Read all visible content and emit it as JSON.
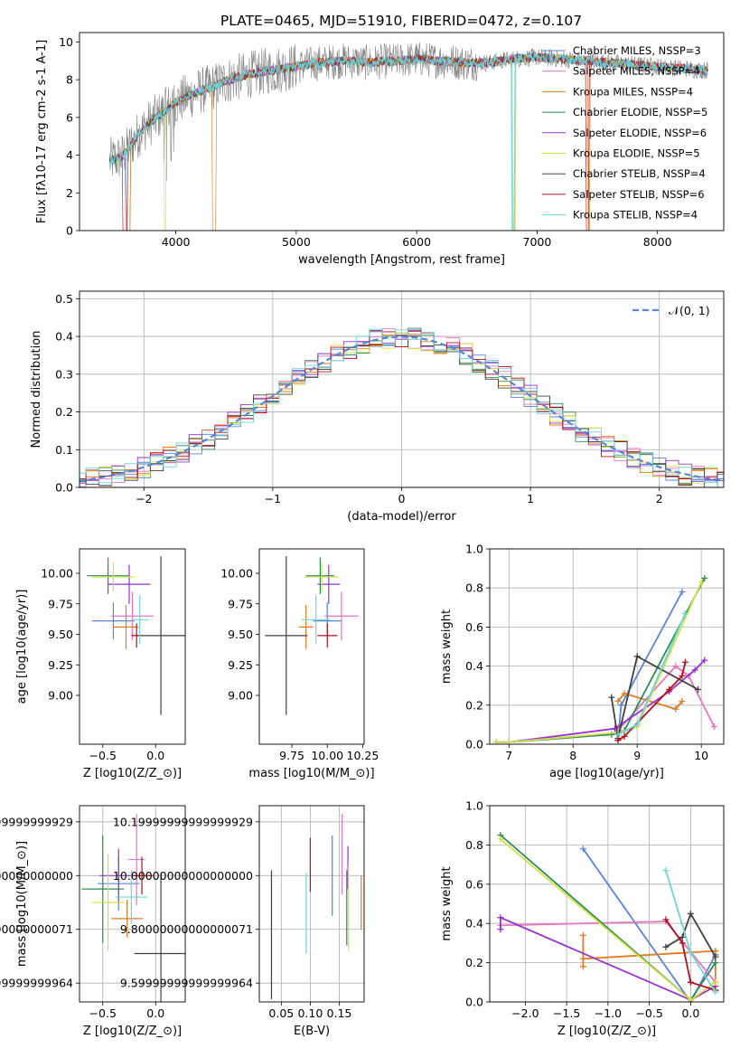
{
  "suptitle": "PLATE=0465, MJD=51910, FIBERID=0472, z=0.107",
  "series_names": [
    "Chabrier MILES, N$_{SSP}$=3",
    "Salpeter MILES, N$_{SSP}$=4",
    "Kroupa MILES, N$_{SSP}$=4",
    "Chabrier ELODIE, N$_{SSP}$=5",
    "Salpeter ELODIE, N$_{SSP}$=6",
    "Kroupa ELODIE, N$_{SSP}$=5",
    "Chabrier STELIB, N$_{SSP}$=4",
    "Salpeter STELIB, N$_{SSP}$=6",
    "Kroupa STELIB, N$_{SSP}$=4"
  ],
  "colors": [
    "#5b84d6",
    "#e377c2",
    "#e07b20",
    "#2e8b57",
    "#9932cc",
    "#d4e04a",
    "#404040",
    "#b01020",
    "#6fd4d8"
  ],
  "chart_data": [
    {
      "id": "spectrum",
      "type": "line",
      "title": "PLATE=0465, MJD=51910, FIBERID=0472, z=0.107",
      "xlabel": "wavelength [Angstrom, rest frame]",
      "ylabel": "Flux [f$_\\lambda$10$^{-17}$ erg cm$^{-2}$ s$^{-1}$ A$^{-1}$]",
      "xlim": [
        3200,
        8550
      ],
      "ylim": [
        0,
        10.5
      ],
      "xticks": [
        4000,
        5000,
        6000,
        7000,
        8000
      ],
      "yticks": [
        0,
        2,
        4,
        6,
        8,
        10
      ],
      "data_series": {
        "name": "data",
        "color": "#808080"
      },
      "continuum_knots": {
        "x": [
          3450,
          3550,
          3600,
          3700,
          3800,
          3900,
          4000,
          4100,
          4200,
          4300,
          4400,
          4500,
          4700,
          4900,
          5000,
          5200,
          5400,
          5600,
          5800,
          6000,
          6200,
          6400,
          6600,
          6800,
          7000,
          7200,
          7400,
          7600,
          7800,
          8000,
          8200,
          8400
        ],
        "y": [
          3.7,
          3.9,
          4.3,
          5.2,
          5.8,
          6.3,
          6.8,
          7.1,
          7.4,
          7.6,
          7.9,
          8.1,
          8.4,
          8.6,
          8.7,
          8.9,
          9.0,
          8.9,
          9.0,
          9.1,
          9.0,
          8.9,
          8.9,
          9.1,
          9.2,
          9.1,
          9.0,
          8.9,
          8.8,
          8.7,
          8.6,
          8.5
        ]
      },
      "legend": "upper right"
    },
    {
      "id": "residual_hist",
      "type": "histogram",
      "xlabel": "(data-model)/error",
      "ylabel": "Normed distribution",
      "xlim": [
        -2.5,
        2.5
      ],
      "ylim": [
        0,
        0.52
      ],
      "xticks": [
        -2,
        -1,
        0,
        1,
        2
      ],
      "yticks": [
        0.0,
        0.1,
        0.2,
        0.3,
        0.4,
        0.5
      ],
      "grid": true,
      "bin_width": 0.1,
      "reference_curve": {
        "name": "$\\mathcal{N}(0,1)$",
        "color": "#5b84d6",
        "style": "dashed"
      },
      "legend": "upper right"
    },
    {
      "id": "age_vs_Z",
      "type": "errorbar",
      "xlabel": "Z [log$_{10}$(Z/Z$_\\odot$)]",
      "ylabel": "age  [log$_{10}$(age/yr)]",
      "xlim": [
        -0.72,
        0.28
      ],
      "ylim": [
        8.6,
        10.2
      ],
      "xticks": [
        -0.5,
        0.0
      ],
      "yticks": [
        9.0,
        9.25,
        9.5,
        9.75,
        10.0
      ],
      "points": [
        {
          "x": -0.4,
          "xerr": 0.2,
          "y": 9.61,
          "yerr": 0.15
        },
        {
          "x": -0.22,
          "xerr": 0.2,
          "y": 9.65,
          "yerr": 0.2
        },
        {
          "x": -0.28,
          "xerr": 0.12,
          "y": 9.56,
          "yerr": 0.18
        },
        {
          "x": -0.45,
          "xerr": 0.2,
          "y": 9.98,
          "yerr": 0.15
        },
        {
          "x": -0.25,
          "xerr": 0.2,
          "y": 9.91,
          "yerr": 0.16
        },
        {
          "x": -0.4,
          "xerr": 0.2,
          "y": 9.97,
          "yerr": 0.12
        },
        {
          "x": 0.05,
          "xerr": 0.25,
          "y": 9.49,
          "yerr": 0.65
        },
        {
          "x": -0.18,
          "xerr": 0.05,
          "y": 9.49,
          "yerr": 0.1
        },
        {
          "x": -0.15,
          "xerr": 0.08,
          "y": 9.62,
          "yerr": 0.2
        }
      ]
    },
    {
      "id": "age_vs_mass",
      "type": "errorbar",
      "xlabel": "mass [log$_{10}$(M/M$_\\odot$)]",
      "xlim": [
        9.52,
        10.26
      ],
      "ylim": [
        8.6,
        10.2
      ],
      "xticks": [
        9.75,
        10.0,
        10.25
      ],
      "yticks": [
        9.0,
        9.25,
        9.5,
        9.75,
        10.0
      ],
      "points": [
        {
          "x": 10.0,
          "xerr": 0.1,
          "y": 9.61,
          "yerr": 0.15
        },
        {
          "x": 10.1,
          "xerr": 0.12,
          "y": 9.65,
          "yerr": 0.2
        },
        {
          "x": 9.85,
          "xerr": 0.05,
          "y": 9.56,
          "yerr": 0.18
        },
        {
          "x": 9.95,
          "xerr": 0.1,
          "y": 9.98,
          "yerr": 0.15
        },
        {
          "x": 10.01,
          "xerr": 0.08,
          "y": 9.91,
          "yerr": 0.16
        },
        {
          "x": 9.96,
          "xerr": 0.12,
          "y": 9.97,
          "yerr": 0.12
        },
        {
          "x": 9.71,
          "xerr": 0.15,
          "y": 9.49,
          "yerr": 0.65
        },
        {
          "x": 10.0,
          "xerr": 0.07,
          "y": 9.49,
          "yerr": 0.1
        },
        {
          "x": 9.92,
          "xerr": 0.1,
          "y": 9.62,
          "yerr": 0.2
        }
      ]
    },
    {
      "id": "weight_vs_age",
      "type": "line",
      "xlabel": "age  [log$_{10}$(age/yr)]",
      "ylabel": "mass weight",
      "xlim": [
        6.7,
        10.35
      ],
      "ylim": [
        0,
        1.0
      ],
      "xticks": [
        7,
        8,
        9,
        10
      ],
      "yticks": [
        0.0,
        0.2,
        0.4,
        0.6,
        0.8,
        1.0
      ],
      "grid": true,
      "series": [
        {
          "x": [
            8.7,
            8.75,
            9.7
          ],
          "y": [
            0.02,
            0.2,
            0.78
          ]
        },
        {
          "x": [
            8.7,
            9.6,
            9.8,
            10.2
          ],
          "y": [
            0.07,
            0.4,
            0.35,
            0.09
          ]
        },
        {
          "x": [
            8.7,
            8.8,
            9.6,
            9.7
          ],
          "y": [
            0.22,
            0.26,
            0.18,
            0.22
          ]
        },
        {
          "x": [
            6.8,
            7.0,
            8.6,
            8.8,
            10.05
          ],
          "y": [
            0.01,
            0.01,
            0.05,
            0.07,
            0.85
          ]
        },
        {
          "x": [
            6.8,
            7.0,
            8.65,
            9.5,
            9.9,
            10.05
          ],
          "y": [
            0.01,
            0.01,
            0.08,
            0.27,
            0.38,
            0.43
          ]
        },
        {
          "x": [
            6.8,
            7.0,
            8.7,
            9.0,
            10.0
          ],
          "y": [
            0.01,
            0.01,
            0.06,
            0.09,
            0.83
          ]
        },
        {
          "x": [
            8.6,
            8.7,
            9.0,
            9.95
          ],
          "y": [
            0.24,
            0.03,
            0.45,
            0.28
          ]
        },
        {
          "x": [
            8.7,
            8.8,
            9.5,
            9.7,
            9.75
          ],
          "y": [
            0.02,
            0.04,
            0.28,
            0.35,
            0.42
          ]
        },
        {
          "x": [
            8.7,
            9.0,
            9.75
          ],
          "y": [
            0.05,
            0.1,
            0.67
          ]
        }
      ]
    },
    {
      "id": "mass_vs_Z",
      "type": "errorbar",
      "xlabel": "Z [log$_{10}$(Z/Z$_\\odot$)]",
      "ylabel": "mass [log$_{10}$(M/M$_\\odot$)]",
      "xlim": [
        -0.72,
        0.28
      ],
      "ylim": [
        9.53,
        10.26
      ],
      "xticks": [
        -0.5,
        0.0
      ],
      "yticks": [
        9.6,
        9.8,
        10.0,
        10.2
      ],
      "grid": true,
      "points": [
        {
          "x": -0.35,
          "xerr": 0.2,
          "y": 9.97,
          "yerr": 0.1
        },
        {
          "x": -0.18,
          "xerr": 0.08,
          "y": 10.06,
          "yerr": 0.17
        },
        {
          "x": -0.27,
          "xerr": 0.15,
          "y": 9.84,
          "yerr": 0.07
        },
        {
          "x": -0.5,
          "xerr": 0.2,
          "y": 9.95,
          "yerr": 0.2
        },
        {
          "x": -0.35,
          "xerr": 0.18,
          "y": 10.0,
          "yerr": 0.1
        },
        {
          "x": -0.45,
          "xerr": 0.15,
          "y": 9.9,
          "yerr": 0.18
        },
        {
          "x": 0.05,
          "xerr": 0.25,
          "y": 9.71,
          "yerr": 0.3
        },
        {
          "x": -0.13,
          "xerr": 0.1,
          "y": 10.0,
          "yerr": 0.07
        },
        {
          "x": -0.23,
          "xerr": 0.15,
          "y": 9.92,
          "yerr": 0.1
        }
      ]
    },
    {
      "id": "mass_vs_ebv",
      "type": "errorbar",
      "xlabel": "E(B-V)",
      "xlim": [
        0.012,
        0.193
      ],
      "ylim": [
        9.53,
        10.26
      ],
      "xticks": [
        0.05,
        0.1,
        0.15
      ],
      "yticks": [
        9.6,
        9.8,
        10.0,
        10.2
      ],
      "grid": true,
      "points": [
        {
          "x": 0.138,
          "xerr": 0.0,
          "y": 10.0,
          "yerr": 0.15
        },
        {
          "x": 0.155,
          "xerr": 0.0,
          "y": 10.08,
          "yerr": 0.15
        },
        {
          "x": 0.188,
          "xerr": 0.0,
          "y": 9.9,
          "yerr": 0.1
        },
        {
          "x": 0.163,
          "xerr": 0.0,
          "y": 9.88,
          "yerr": 0.14
        },
        {
          "x": 0.165,
          "xerr": 0.0,
          "y": 10.03,
          "yerr": 0.08
        },
        {
          "x": 0.166,
          "xerr": 0.0,
          "y": 9.88,
          "yerr": 0.16
        },
        {
          "x": 0.033,
          "xerr": 0.0,
          "y": 9.78,
          "yerr": 0.24
        },
        {
          "x": 0.1,
          "xerr": 0.0,
          "y": 10.04,
          "yerr": 0.1
        },
        {
          "x": 0.093,
          "xerr": 0.0,
          "y": 9.86,
          "yerr": 0.15
        }
      ]
    },
    {
      "id": "weight_vs_Z",
      "type": "line",
      "xlabel": "Z [log$_{10}$(Z/Z$_\\odot$)]",
      "ylabel": "mass weight",
      "xlim": [
        -2.43,
        0.4
      ],
      "ylim": [
        0,
        1.0
      ],
      "xticks": [
        -2.0,
        -1.5,
        -1.0,
        -0.5,
        0.0
      ],
      "yticks": [
        0.0,
        0.2,
        0.4,
        0.6,
        0.8,
        1.0
      ],
      "grid": true,
      "series": [
        {
          "x": [
            -1.3,
            0.0,
            0.3
          ],
          "y": [
            0.78,
            0.0,
            0.24
          ]
        },
        {
          "x": [
            -2.3,
            -0.3,
            0.3
          ],
          "y": [
            0.39,
            0.41,
            0.1
          ]
        },
        {
          "x": [
            -1.3,
            -1.3,
            -1.3,
            0.3,
            0.3
          ],
          "y": [
            0.18,
            0.34,
            0.22,
            0.26,
            0.06
          ]
        },
        {
          "x": [
            -2.3,
            0.0,
            0.3
          ],
          "y": [
            0.85,
            0.01,
            0.2
          ]
        },
        {
          "x": [
            -2.3,
            -2.3,
            0.0,
            0.3
          ],
          "y": [
            0.37,
            0.43,
            0.01,
            0.08
          ]
        },
        {
          "x": [
            -2.3,
            0.0,
            0.3
          ],
          "y": [
            0.83,
            0.01,
            0.1
          ]
        },
        {
          "x": [
            -0.3,
            -0.1,
            0.0,
            0.3
          ],
          "y": [
            0.28,
            0.33,
            0.45,
            0.23
          ]
        },
        {
          "x": [
            -0.3,
            -0.1,
            0.0,
            0.3
          ],
          "y": [
            0.42,
            0.3,
            0.1,
            0.06
          ]
        },
        {
          "x": [
            -0.3,
            0.0,
            0.3
          ],
          "y": [
            0.67,
            0.25,
            0.05
          ]
        }
      ]
    }
  ]
}
